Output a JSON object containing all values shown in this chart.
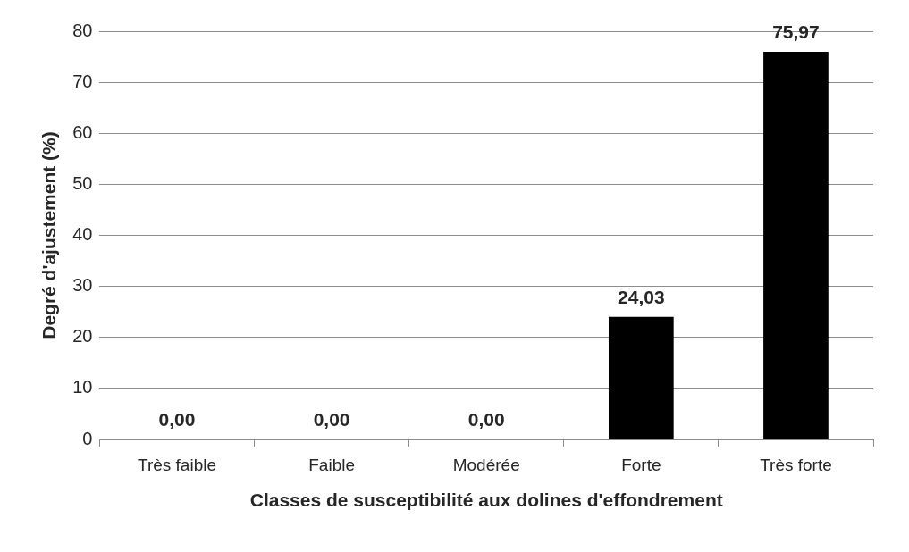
{
  "chart_data": {
    "type": "bar",
    "xlabel": "Classes de susceptibilité aux dolines d'effondrement",
    "ylabel": "Degré d'ajustement (%)",
    "categories": [
      "Très faible",
      "Faible",
      "Modérée",
      "Forte",
      "Très forte"
    ],
    "values": [
      0,
      0,
      0,
      24.03,
      75.97
    ],
    "value_labels": [
      "0,00",
      "0,00",
      "0,00",
      "24,03",
      "75,97"
    ],
    "color": "#000000",
    "ylim": [
      0,
      80
    ],
    "yticks": [
      0,
      10,
      20,
      30,
      40,
      50,
      60,
      70,
      80
    ],
    "grid": "y",
    "legend": false
  }
}
